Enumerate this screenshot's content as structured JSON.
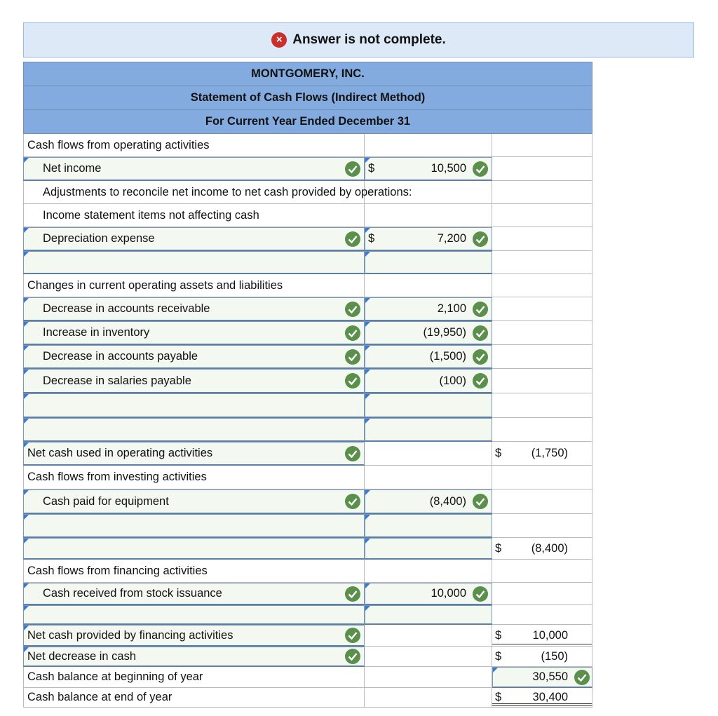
{
  "banner": {
    "message": "Answer is not complete."
  },
  "statement": {
    "header": [
      "MONTGOMERY, INC.",
      "Statement of Cash Flows (Indirect Method)",
      "For Current Year Ended December 31"
    ],
    "rows": [
      {
        "label": "Cash flows from operating activities"
      },
      {
        "label": "Net income",
        "currency": "$",
        "amount": "10,500"
      },
      {
        "label": "Adjustments to reconcile net income to net cash provided by operations:"
      },
      {
        "label": "Income statement items not affecting cash"
      },
      {
        "label": "Depreciation expense",
        "currency": "$",
        "amount": "7,200"
      },
      {},
      {
        "label": "Changes in current operating assets and liabilities"
      },
      {
        "label": "Decrease in accounts receivable",
        "amount": "2,100"
      },
      {
        "label": "Increase in inventory",
        "amount": "(19,950)"
      },
      {
        "label": "Decrease in accounts payable",
        "amount": "(1,500)"
      },
      {
        "label": "Decrease in salaries payable",
        "amount": "(100)"
      },
      {},
      {},
      {
        "label": "Net cash used in operating activities",
        "total_currency": "$",
        "total": "(1,750)"
      },
      {
        "label": "Cash flows from investing activities"
      },
      {
        "label": "Cash paid for equipment",
        "amount": "(8,400)"
      },
      {},
      {
        "total_currency": "$",
        "total": "(8,400)"
      },
      {
        "label": "Cash flows from financing activities"
      },
      {
        "label": "Cash received from stock issuance",
        "amount": "10,000"
      },
      {},
      {
        "label": "Net cash provided by financing activities",
        "total_currency": "$",
        "total": "10,000"
      },
      {
        "label": "Net decrease in cash",
        "total_currency": "$",
        "total": "(150)"
      },
      {
        "label": "Cash balance at beginning of year",
        "total": "30,550"
      },
      {
        "label": "Cash balance at end of year",
        "total_currency": "$",
        "total": "30,400"
      }
    ]
  }
}
